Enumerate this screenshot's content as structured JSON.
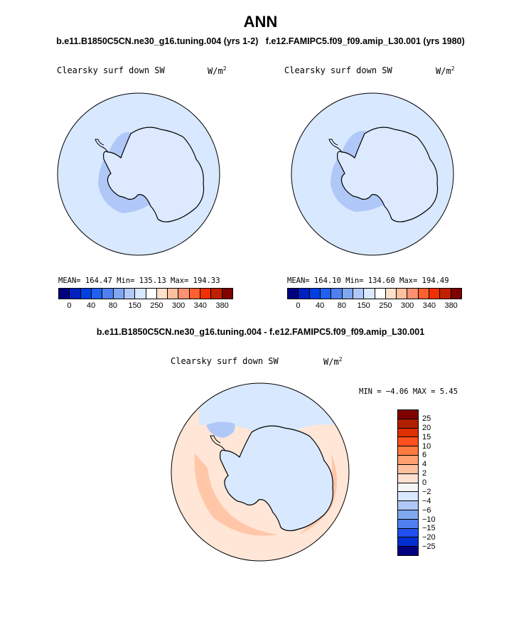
{
  "header": {
    "title": "ANN",
    "subtitle_left": "b.e11.B1850C5CN.ne30_g16.tuning.004 (yrs 1-2)",
    "subtitle_right": "f.e12.FAMIPC5.f09_f09.amip_L30.001 (yrs 1980)",
    "diff_title": "b.e11.B1850C5CN.ne30_g16.tuning.004 - f.e12.FAMIPC5.f09_f09.amip_L30.001"
  },
  "panel1": {
    "variable": "Clearsky surf down SW",
    "units": "W/m",
    "units_exp": "2",
    "stats": "MEAN= 164.47  Min= 135.13  Max= 194.33"
  },
  "panel2": {
    "variable": "Clearsky surf down SW",
    "units": "W/m",
    "units_exp": "2",
    "stats": "MEAN= 164.10  Min= 134.60  Max= 194.49"
  },
  "panel3": {
    "variable": "Clearsky surf down SW",
    "units": "W/m",
    "units_exp": "2",
    "stats": "MIN =  −4.06 MAX =   5.45"
  },
  "colorbar_abs": {
    "colors": [
      "#000080",
      "#0020c0",
      "#0040e0",
      "#2060f0",
      "#5080f0",
      "#80a8f0",
      "#b0c8f8",
      "#d8e8ff",
      "#ffffff",
      "#ffe0c8",
      "#ffc0a0",
      "#ff9070",
      "#ff6030",
      "#f03000",
      "#c02000",
      "#800000"
    ],
    "tick_labels": [
      "0",
      "40",
      "80",
      "150",
      "250",
      "300",
      "340",
      "380"
    ]
  },
  "colorbar_diff": {
    "colors": [
      "#800000",
      "#b02000",
      "#e03000",
      "#ff5020",
      "#ff7a40",
      "#ffa070",
      "#ffc0a0",
      "#ffe0d0",
      "#f6f6f6",
      "#d8e8ff",
      "#b0c8f8",
      "#80a8f0",
      "#5080f0",
      "#2050f0",
      "#0030d0",
      "#000080"
    ],
    "labels": [
      "25",
      "20",
      "15",
      "10",
      "6",
      "4",
      "2",
      "0",
      "−2",
      "−4",
      "−6",
      "−10",
      "−15",
      "−20",
      "−25"
    ]
  },
  "map_colors": {
    "ocean_light": "#d8e8ff",
    "ocean_mid": "#b0c8f8",
    "land_light": "#dce9ff",
    "diff_pos_light": "#ffe6d6",
    "diff_pos_mid": "#ffc6a8",
    "diff_neg": "#d8e8ff",
    "coast": "#000000"
  }
}
